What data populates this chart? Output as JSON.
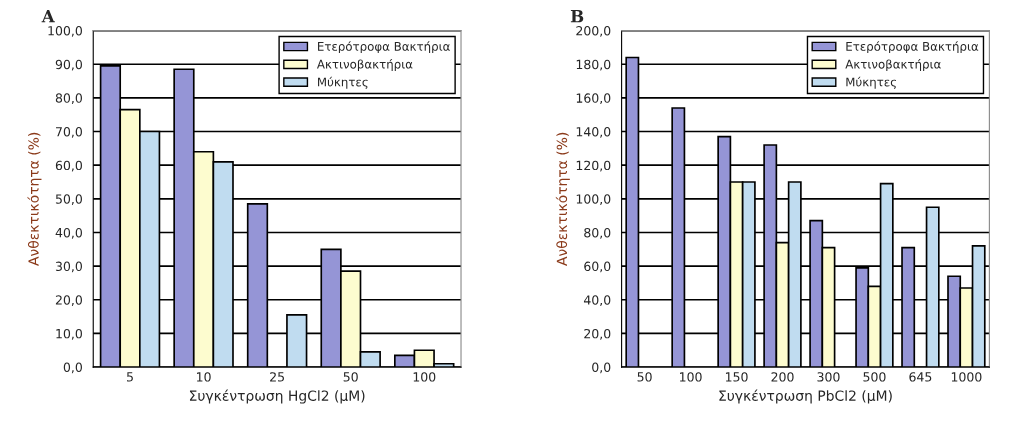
{
  "chart_data": [
    {
      "type": "bar",
      "title": "A",
      "xlabel": "Συγκέντρωση HgCl2 (μM)",
      "ylabel": "Ανθεκτικότητα (%)",
      "categories": [
        "5",
        "10",
        "25",
        "50",
        "100"
      ],
      "series": [
        {
          "name": "Ετερότροφα Βακτήρια",
          "color": "#9595d6",
          "values": [
            89.5,
            88.5,
            48.5,
            35,
            3.5
          ]
        },
        {
          "name": "Ακτινοβακτήρια",
          "color": "#fdfccf",
          "values": [
            76.5,
            64,
            null,
            28.5,
            5
          ]
        },
        {
          "name": "Μύκητες",
          "color": "#c0dcf0",
          "values": [
            70,
            61,
            15.5,
            4.5,
            1
          ]
        }
      ],
      "ylim": [
        0,
        100
      ],
      "yticks": [
        {
          "value": 0,
          "label": "0,0"
        },
        {
          "value": 10,
          "label": "10,0"
        },
        {
          "value": 20,
          "label": "20,0"
        },
        {
          "value": 30,
          "label": "30,0"
        },
        {
          "value": 40,
          "label": "40,0"
        },
        {
          "value": 50,
          "label": "50,0"
        },
        {
          "value": 60,
          "label": "60,0"
        },
        {
          "value": 70,
          "label": "70,0"
        },
        {
          "value": 80,
          "label": "80,0"
        },
        {
          "value": 90,
          "label": "90,0"
        },
        {
          "value": 100,
          "label": "100,0"
        }
      ],
      "grid": "y",
      "legend": "top right"
    },
    {
      "type": "bar",
      "title": "B",
      "xlabel": "Συγκέντρωση PbCl2 (μM)",
      "ylabel": "Ανθεκτικότητα (%)",
      "categories": [
        "50",
        "100",
        "150",
        "200",
        "300",
        "500",
        "645",
        "1000"
      ],
      "series": [
        {
          "name": "Ετερότροφα Βακτήρια",
          "color": "#9595d6",
          "values": [
            184,
            154,
            137,
            132,
            87,
            59,
            71,
            54
          ]
        },
        {
          "name": "Ακτινοβακτήρια",
          "color": "#fdfccf",
          "values": [
            null,
            null,
            110,
            74,
            71,
            48,
            null,
            47
          ]
        },
        {
          "name": "Μύκητες",
          "color": "#c0dcf0",
          "values": [
            null,
            null,
            110,
            110,
            null,
            109,
            95,
            72
          ]
        }
      ],
      "ylim": [
        0,
        200
      ],
      "yticks": [
        {
          "value": 0,
          "label": "0,0"
        },
        {
          "value": 20,
          "label": "20,0"
        },
        {
          "value": 40,
          "label": "40,0"
        },
        {
          "value": 60,
          "label": "60,0"
        },
        {
          "value": 80,
          "label": "80,0"
        },
        {
          "value": 100,
          "label": "100,0"
        },
        {
          "value": 120,
          "label": "120,0"
        },
        {
          "value": 140,
          "label": "140,0"
        },
        {
          "value": 160,
          "label": "160,0"
        },
        {
          "value": 180,
          "label": "180,0"
        },
        {
          "value": 200,
          "label": "200,0"
        }
      ],
      "grid": "y",
      "legend": "top right"
    }
  ]
}
